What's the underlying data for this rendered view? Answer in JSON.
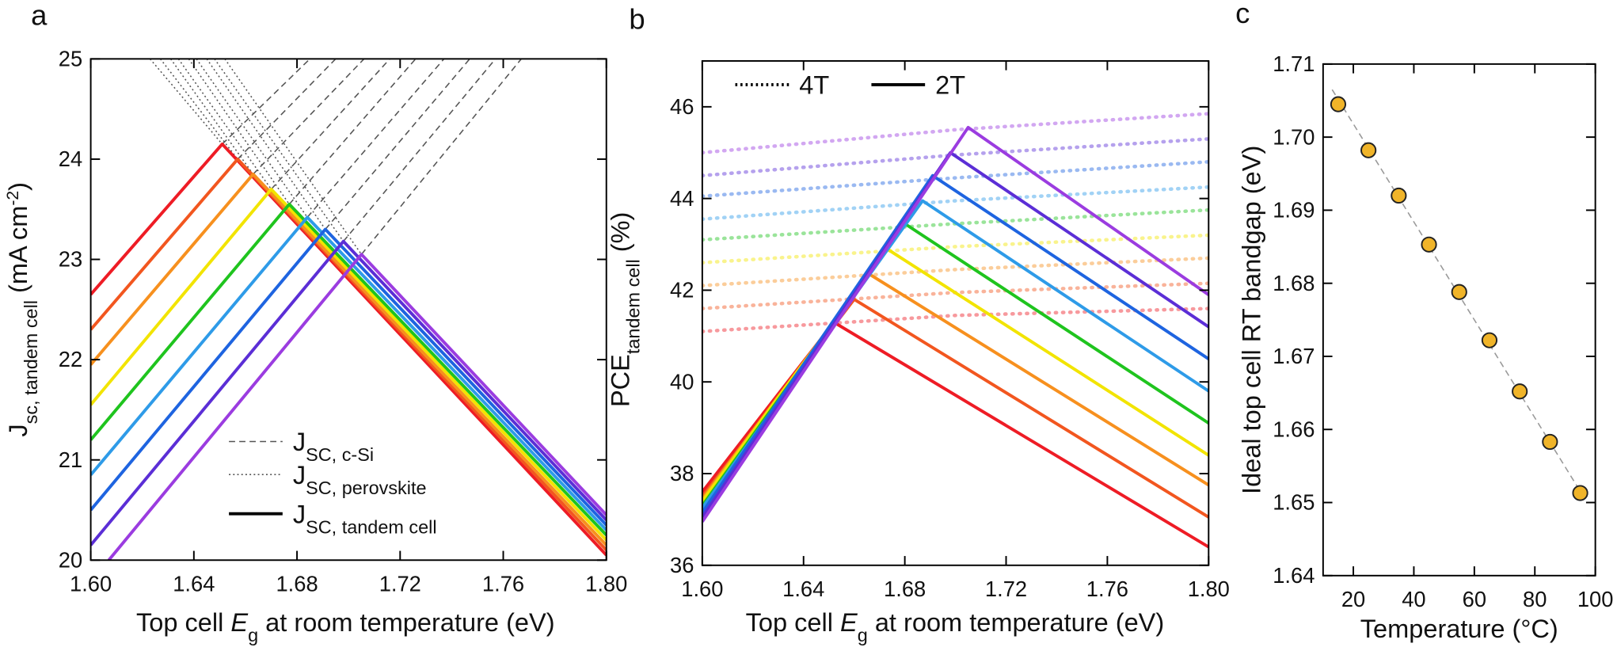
{
  "chart_data": [
    {
      "type": "line",
      "letter": "a",
      "x_label": [
        {
          "text": "Top cell "
        },
        {
          "text": "E",
          "italic": true
        },
        {
          "text": "g",
          "sub": true
        },
        {
          "text": " at room temperature  (eV)"
        }
      ],
      "y_label": [
        {
          "text": "J"
        },
        {
          "text": "sc, tandem cell",
          "sub": true
        },
        {
          "text": " (mA cm"
        },
        {
          "text": "-2",
          "sup": true
        },
        {
          "text": ")"
        }
      ],
      "xlim": [
        1.6,
        1.8
      ],
      "xticks": [
        {
          "value": 1.6,
          "label": "1.60"
        },
        1.64,
        1.68,
        1.72,
        1.76,
        {
          "value": 1.8,
          "label": "1.80"
        }
      ],
      "ylim": [
        20,
        25
      ],
      "yticks": [
        20,
        21,
        22,
        23,
        24,
        25
      ],
      "legend": [
        {
          "parts": [
            {
              "text": "J"
            },
            {
              "text": "SC, c-Si",
              "sub": true
            }
          ],
          "style": "dashed",
          "color": "#555555"
        },
        {
          "parts": [
            {
              "text": "J"
            },
            {
              "text": "SC, perovskite",
              "sub": true
            }
          ],
          "style": "dotted",
          "color": "#555555"
        },
        {
          "parts": [
            {
              "text": "J"
            },
            {
              "text": "SC, tandem cell",
              "sub": true
            }
          ],
          "style": "solid",
          "color": "#000000"
        }
      ],
      "series": [
        {
          "style": "dashed",
          "color": "#555555",
          "x": [
            1.651,
            1.685
          ],
          "values": [
            24.15,
            25
          ]
        },
        {
          "style": "dashed",
          "color": "#555555",
          "x": [
            1.657,
            1.695
          ],
          "values": [
            24.0,
            25
          ]
        },
        {
          "style": "dashed",
          "color": "#555555",
          "x": [
            1.663,
            1.706
          ],
          "values": [
            23.85,
            25
          ]
        },
        {
          "style": "dashed",
          "color": "#555555",
          "x": [
            1.67,
            1.716
          ],
          "values": [
            23.7,
            25
          ]
        },
        {
          "style": "dashed",
          "color": "#555555",
          "x": [
            1.677,
            1.726
          ],
          "values": [
            23.55,
            25
          ]
        },
        {
          "style": "dashed",
          "color": "#555555",
          "x": [
            1.684,
            1.737
          ],
          "values": [
            23.42,
            25
          ]
        },
        {
          "style": "dashed",
          "color": "#555555",
          "x": [
            1.691,
            1.747
          ],
          "values": [
            23.3,
            25
          ]
        },
        {
          "style": "dashed",
          "color": "#555555",
          "x": [
            1.698,
            1.757
          ],
          "values": [
            23.18,
            25
          ]
        },
        {
          "style": "dashed",
          "color": "#555555",
          "x": [
            1.705,
            1.767
          ],
          "values": [
            23.05,
            25
          ]
        },
        {
          "style": "dotted",
          "color": "#555555",
          "x": [
            1.623,
            1.651,
            1.8
          ],
          "values": [
            25,
            24.15,
            20.05
          ]
        },
        {
          "style": "dotted",
          "color": "#555555",
          "x": [
            1.627,
            1.657,
            1.8
          ],
          "values": [
            25,
            24.0,
            20.1
          ]
        },
        {
          "style": "dotted",
          "color": "#555555",
          "x": [
            1.631,
            1.663,
            1.8
          ],
          "values": [
            25,
            23.85,
            20.15
          ]
        },
        {
          "style": "dotted",
          "color": "#555555",
          "x": [
            1.634,
            1.67,
            1.8
          ],
          "values": [
            25,
            23.7,
            20.2
          ]
        },
        {
          "style": "dotted",
          "color": "#555555",
          "x": [
            1.638,
            1.677,
            1.8
          ],
          "values": [
            25,
            23.55,
            20.25
          ]
        },
        {
          "style": "dotted",
          "color": "#555555",
          "x": [
            1.641,
            1.684,
            1.8
          ],
          "values": [
            25,
            23.42,
            20.3
          ]
        },
        {
          "style": "dotted",
          "color": "#555555",
          "x": [
            1.645,
            1.691,
            1.8
          ],
          "values": [
            25,
            23.3,
            20.35
          ]
        },
        {
          "style": "dotted",
          "color": "#555555",
          "x": [
            1.648,
            1.698,
            1.8
          ],
          "values": [
            25,
            23.18,
            20.4
          ]
        },
        {
          "style": "dotted",
          "color": "#555555",
          "x": [
            1.652,
            1.705,
            1.8
          ],
          "values": [
            25,
            23.05,
            20.45
          ]
        },
        {
          "style": "solid",
          "color": "#ee1c25",
          "x": [
            1.6,
            1.651,
            1.8
          ],
          "values": [
            22.65,
            24.15,
            20.05
          ]
        },
        {
          "style": "solid",
          "color": "#f2561f",
          "x": [
            1.6,
            1.657,
            1.8
          ],
          "values": [
            22.3,
            24.0,
            20.1
          ]
        },
        {
          "style": "solid",
          "color": "#f7901e",
          "x": [
            1.6,
            1.663,
            1.8
          ],
          "values": [
            21.95,
            23.85,
            20.15
          ]
        },
        {
          "style": "solid",
          "color": "#f2e400",
          "x": [
            1.6,
            1.67,
            1.8
          ],
          "values": [
            21.55,
            23.7,
            20.2
          ]
        },
        {
          "style": "solid",
          "color": "#1fc41e",
          "x": [
            1.6,
            1.677,
            1.8
          ],
          "values": [
            21.2,
            23.55,
            20.25
          ]
        },
        {
          "style": "solid",
          "color": "#2e9be8",
          "x": [
            1.6,
            1.684,
            1.8
          ],
          "values": [
            20.85,
            23.42,
            20.3
          ]
        },
        {
          "style": "solid",
          "color": "#1e64e0",
          "x": [
            1.6,
            1.691,
            1.8
          ],
          "values": [
            20.5,
            23.3,
            20.35
          ]
        },
        {
          "style": "solid",
          "color": "#5b2ed6",
          "x": [
            1.6,
            1.698,
            1.8
          ],
          "values": [
            20.15,
            23.18,
            20.4
          ]
        },
        {
          "style": "solid",
          "color": "#9b3ce0",
          "x": [
            1.607,
            1.705,
            1.8
          ],
          "values": [
            20.0,
            23.05,
            20.45
          ]
        }
      ]
    },
    {
      "type": "line",
      "letter": "b",
      "x_label": [
        {
          "text": "Top cell "
        },
        {
          "text": "E",
          "italic": true
        },
        {
          "text": "g",
          "sub": true
        },
        {
          "text": " at room temperature (eV)"
        }
      ],
      "y_label": [
        {
          "text": "PCE"
        },
        {
          "text": "tandem cell",
          "sub": true
        },
        {
          "text": " (%)"
        }
      ],
      "xlim": [
        1.6,
        1.8
      ],
      "xticks": [
        {
          "value": 1.6,
          "label": "1.60"
        },
        1.64,
        1.68,
        1.72,
        1.76,
        {
          "value": 1.8,
          "label": "1.80"
        }
      ],
      "ylim": [
        36,
        47
      ],
      "yticks": [
        36,
        38,
        40,
        42,
        44,
        46
      ],
      "legend": [
        {
          "parts": [
            {
              "text": "4T"
            }
          ],
          "style": "dotted",
          "color": "#000000"
        },
        {
          "parts": [
            {
              "text": "2T"
            }
          ],
          "style": "solid",
          "color": "#000000"
        }
      ],
      "series": [
        {
          "style": "dotted",
          "opacity": 0.45,
          "color": "#ee1c25",
          "x": [
            1.6,
            1.7,
            1.8
          ],
          "values": [
            41.1,
            41.45,
            41.6
          ]
        },
        {
          "style": "dotted",
          "opacity": 0.45,
          "color": "#f2561f",
          "x": [
            1.6,
            1.7,
            1.8
          ],
          "values": [
            41.6,
            41.95,
            42.15
          ]
        },
        {
          "style": "dotted",
          "opacity": 0.45,
          "color": "#f7901e",
          "x": [
            1.6,
            1.7,
            1.8
          ],
          "values": [
            42.1,
            42.45,
            42.7
          ]
        },
        {
          "style": "dotted",
          "opacity": 0.45,
          "color": "#f2e400",
          "x": [
            1.6,
            1.7,
            1.8
          ],
          "values": [
            42.6,
            42.95,
            43.2
          ]
        },
        {
          "style": "dotted",
          "opacity": 0.45,
          "color": "#1fc41e",
          "x": [
            1.6,
            1.7,
            1.8
          ],
          "values": [
            43.1,
            43.45,
            43.75
          ]
        },
        {
          "style": "dotted",
          "opacity": 0.45,
          "color": "#2e9be8",
          "x": [
            1.6,
            1.7,
            1.8
          ],
          "values": [
            43.55,
            43.95,
            44.25
          ]
        },
        {
          "style": "dotted",
          "opacity": 0.45,
          "color": "#1e64e0",
          "x": [
            1.6,
            1.7,
            1.8
          ],
          "values": [
            44.05,
            44.45,
            44.8
          ]
        },
        {
          "style": "dotted",
          "opacity": 0.45,
          "color": "#5b2ed6",
          "x": [
            1.6,
            1.7,
            1.8
          ],
          "values": [
            44.5,
            44.95,
            45.3
          ]
        },
        {
          "style": "dotted",
          "opacity": 0.45,
          "color": "#9b3ce0",
          "x": [
            1.6,
            1.7,
            1.8
          ],
          "values": [
            45.0,
            45.5,
            45.85
          ]
        },
        {
          "style": "solid",
          "color": "#ee1c25",
          "x": [
            1.6,
            1.652,
            1.8
          ],
          "values": [
            37.6,
            41.3,
            36.4
          ]
        },
        {
          "style": "solid",
          "color": "#f2561f",
          "x": [
            1.6,
            1.66,
            1.8
          ],
          "values": [
            37.5,
            41.8,
            37.05
          ]
        },
        {
          "style": "solid",
          "color": "#f7901e",
          "x": [
            1.6,
            1.666,
            1.8
          ],
          "values": [
            37.45,
            42.35,
            37.75
          ]
        },
        {
          "style": "solid",
          "color": "#f2e400",
          "x": [
            1.6,
            1.673,
            1.8
          ],
          "values": [
            37.4,
            42.9,
            38.4
          ]
        },
        {
          "style": "solid",
          "color": "#1fc41e",
          "x": [
            1.6,
            1.68,
            1.8
          ],
          "values": [
            37.3,
            43.45,
            39.1
          ]
        },
        {
          "style": "solid",
          "color": "#2e9be8",
          "x": [
            1.6,
            1.687,
            1.8
          ],
          "values": [
            37.25,
            43.95,
            39.8
          ]
        },
        {
          "style": "solid",
          "color": "#1e64e0",
          "x": [
            1.6,
            1.691,
            1.8
          ],
          "values": [
            37.15,
            44.5,
            40.5
          ]
        },
        {
          "style": "solid",
          "color": "#5b2ed6",
          "x": [
            1.6,
            1.698,
            1.8
          ],
          "values": [
            37.05,
            45.0,
            41.2
          ]
        },
        {
          "style": "solid",
          "color": "#9b3ce0",
          "x": [
            1.6,
            1.705,
            1.8
          ],
          "values": [
            36.95,
            45.55,
            41.9
          ]
        }
      ]
    },
    {
      "type": "scatter",
      "letter": "c",
      "x_label": [
        {
          "text": "Temperature (°C)"
        }
      ],
      "y_label": [
        {
          "text": "Ideal top cell RT bandgap (eV)"
        }
      ],
      "xlim": [
        10,
        100
      ],
      "xticks": [
        20,
        40,
        60,
        80,
        100
      ],
      "ylim": [
        1.64,
        1.71
      ],
      "yticks": [
        1.64,
        1.65,
        1.66,
        1.67,
        1.68,
        1.69,
        {
          "value": 1.7,
          "label": "1.70"
        },
        1.71
      ],
      "series": [
        {
          "style": "dashed",
          "color": "#999999",
          "x": [
            13,
            97
          ],
          "values": [
            1.7065,
            1.6502
          ]
        },
        {
          "marker": "circle",
          "color": "#f0b429",
          "x": [
            15,
            25,
            35,
            45,
            55,
            65,
            75,
            85,
            95
          ],
          "values": [
            1.7045,
            1.6982,
            1.692,
            1.6853,
            1.6788,
            1.6722,
            1.6652,
            1.6583,
            1.6513
          ]
        }
      ]
    }
  ]
}
